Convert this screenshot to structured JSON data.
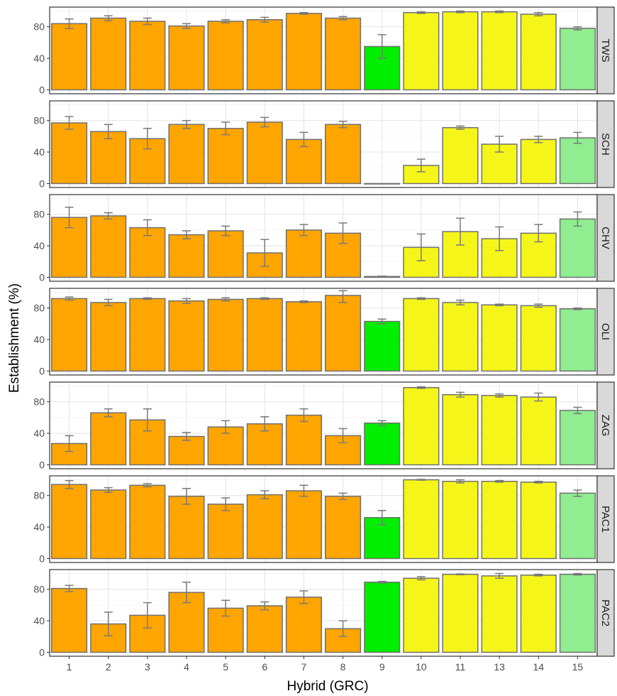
{
  "chart_data": {
    "type": "bar",
    "facet_layout": "rows, strip labels on right",
    "xlabel": "Hybrid (GRC)",
    "ylabel": "Establishment (%)",
    "categories": [
      "1",
      "2",
      "3",
      "4",
      "5",
      "6",
      "7",
      "8",
      "9",
      "10",
      "11",
      "13",
      "14",
      "15"
    ],
    "bar_colors": [
      "#FFA500",
      "#FFA500",
      "#FFA500",
      "#FFA500",
      "#FFA500",
      "#FFA500",
      "#FFA500",
      "#FFA500",
      "#00EE00",
      "#F5F51A",
      "#F5F51A",
      "#F5F51A",
      "#F5F51A",
      "#90EE90"
    ],
    "bar_outline": "#707070",
    "error_bar_color": "#7a7a7a",
    "strip_fill": "#D9D9D9",
    "grid": true,
    "ylim": [
      0,
      100
    ],
    "yticks": [
      0,
      40,
      80
    ],
    "panels": [
      {
        "label": "TWS",
        "values": [
          84,
          91,
          87,
          81,
          87,
          89,
          97,
          91,
          55,
          98,
          99,
          99,
          96,
          78
        ],
        "errors": [
          6,
          3,
          4,
          3,
          2,
          3,
          1,
          2,
          15,
          1,
          1,
          1,
          2,
          2
        ]
      },
      {
        "label": "SCH",
        "values": [
          77,
          66,
          57,
          75,
          70,
          78,
          56,
          75,
          0,
          23,
          71,
          50,
          56,
          58
        ],
        "errors": [
          8,
          9,
          13,
          5,
          8,
          6,
          9,
          4,
          0,
          8,
          2,
          10,
          4,
          7
        ]
      },
      {
        "label": "CHV",
        "values": [
          76,
          78,
          63,
          54,
          59,
          31,
          60,
          56,
          1,
          38,
          58,
          49,
          56,
          74
        ],
        "errors": [
          13,
          4,
          10,
          5,
          6,
          17,
          7,
          13,
          0.5,
          17,
          17,
          15,
          11,
          9
        ]
      },
      {
        "label": "OLI",
        "values": [
          92,
          87,
          92,
          89,
          91,
          92,
          88,
          96,
          63,
          92,
          87,
          84,
          83,
          79
        ],
        "errors": [
          2,
          4,
          1,
          3,
          2,
          1,
          1,
          9,
          3,
          1,
          3,
          1,
          2,
          1
        ]
      },
      {
        "label": "ZAG",
        "values": [
          27,
          66,
          57,
          36,
          48,
          52,
          63,
          37,
          53,
          98,
          89,
          88,
          86,
          69
        ],
        "errors": [
          10,
          5,
          14,
          5,
          8,
          9,
          8,
          9,
          3,
          1,
          3,
          2,
          5,
          4
        ]
      },
      {
        "label": "PAC1",
        "values": [
          94,
          87,
          93,
          79,
          69,
          81,
          86,
          79,
          52,
          100,
          98,
          98,
          97,
          83
        ],
        "errors": [
          5,
          3,
          2,
          10,
          8,
          5,
          7,
          4,
          9,
          0.5,
          2,
          1,
          1,
          4
        ]
      },
      {
        "label": "PAC2",
        "values": [
          81,
          36,
          47,
          76,
          56,
          59,
          70,
          30,
          89,
          94,
          99,
          97,
          98,
          99
        ],
        "errors": [
          4,
          15,
          16,
          13,
          10,
          5,
          8,
          10,
          1,
          2,
          0.5,
          3,
          1,
          1
        ]
      }
    ]
  }
}
